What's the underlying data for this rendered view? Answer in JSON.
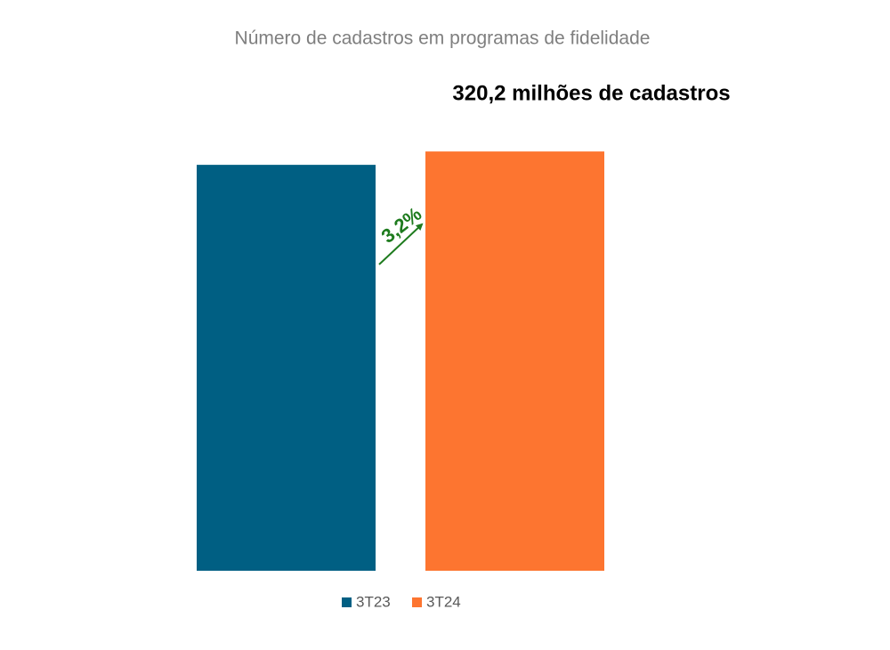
{
  "chart_data": {
    "type": "bar",
    "title": "Número de cadastros em programas de fidelidade",
    "categories": [
      null
    ],
    "series": [
      {
        "name": "3T23",
        "color": "#005f83",
        "values": [
          310
        ]
      },
      {
        "name": "3T24",
        "color": "#fd7530",
        "values": [
          320.2
        ],
        "value_labels": [
          "320,2 milhões de cadastros"
        ]
      }
    ],
    "annotations": [
      "3,2%"
    ],
    "ylim": [
      0,
      340
    ],
    "legend": "bottom"
  }
}
